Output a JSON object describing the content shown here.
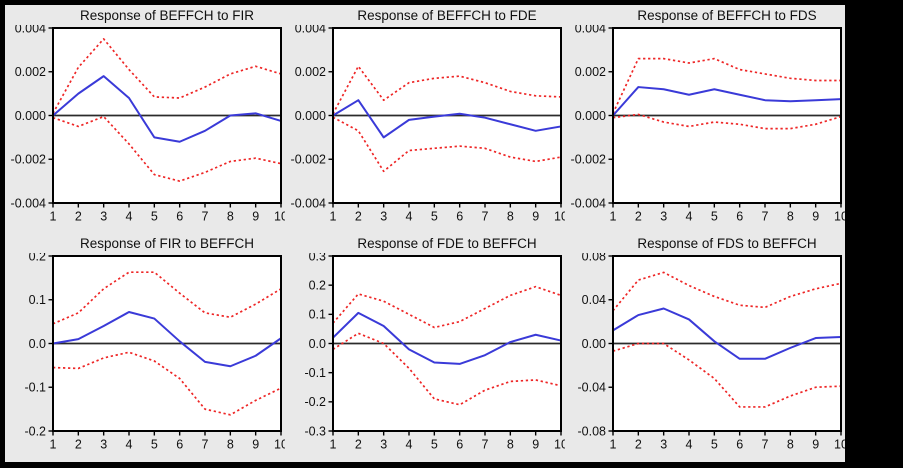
{
  "figure": {
    "background": "#000000",
    "canvas_bg": "#e9e9e9",
    "plot_bg": "#ffffff",
    "axis_color": "#000000",
    "zero_line_color": "#2b2b2b",
    "text_color": "#101010",
    "response_color": "#3a3ad8",
    "band_color": "#ee2626"
  },
  "chart_data": [
    {
      "type": "line",
      "title": "Response of BEFFCH to FIR",
      "x": [
        1,
        2,
        3,
        4,
        5,
        6,
        7,
        8,
        9,
        10
      ],
      "xtick_labels": [
        "1",
        "2",
        "3",
        "4",
        "5",
        "6",
        "7",
        "8",
        "9",
        "10"
      ],
      "ylim": [
        -0.004,
        0.004
      ],
      "yticks": [
        0.004,
        0.002,
        0,
        -0.002,
        -0.004
      ],
      "ytick_labels": [
        "0.004",
        "0.002",
        "0.000",
        "-0.002",
        "-0.004"
      ],
      "grid": false,
      "legend": "none",
      "series": [
        {
          "name": "impulse-response",
          "style": "solid",
          "color": "#3a3ad8",
          "values": [
            0.0,
            0.001,
            0.0018,
            0.0008,
            -0.001,
            -0.0012,
            -0.0007,
            0.0,
            0.0001,
            -0.00025
          ]
        },
        {
          "name": "upper-confidence-band",
          "style": "dashed",
          "color": "#ee2626",
          "values": [
            0.0001,
            0.0022,
            0.0035,
            0.0021,
            0.00085,
            0.0008,
            0.0013,
            0.0019,
            0.00225,
            0.0019
          ]
        },
        {
          "name": "lower-confidence-band",
          "style": "dashed",
          "color": "#ee2626",
          "values": [
            -0.0001,
            -0.0005,
            -5e-05,
            -0.0013,
            -0.0027,
            -0.003,
            -0.0026,
            -0.0021,
            -0.00195,
            -0.0022
          ]
        }
      ]
    },
    {
      "type": "line",
      "title": "Response of BEFFCH to FDE",
      "x": [
        1,
        2,
        3,
        4,
        5,
        6,
        7,
        8,
        9,
        10
      ],
      "xtick_labels": [
        "1",
        "2",
        "3",
        "4",
        "5",
        "6",
        "7",
        "8",
        "9",
        "10"
      ],
      "ylim": [
        -0.004,
        0.004
      ],
      "yticks": [
        0.004,
        0.002,
        0,
        -0.002,
        -0.004
      ],
      "ytick_labels": [
        "0.004",
        "0.002",
        "0.000",
        "-0.002",
        "-0.004"
      ],
      "grid": false,
      "legend": "none",
      "series": [
        {
          "name": "impulse-response",
          "style": "solid",
          "color": "#3a3ad8",
          "values": [
            0.0,
            0.0007,
            -0.001,
            -0.0002,
            -5e-05,
            8e-05,
            -0.0001,
            -0.0004,
            -0.0007,
            -0.0005
          ]
        },
        {
          "name": "upper-confidence-band",
          "style": "dashed",
          "color": "#ee2626",
          "values": [
            8e-05,
            0.00225,
            0.0007,
            0.0015,
            0.0017,
            0.0018,
            0.0015,
            0.0011,
            0.0009,
            0.00085
          ]
        },
        {
          "name": "lower-confidence-band",
          "style": "dashed",
          "color": "#ee2626",
          "values": [
            -8e-05,
            -0.0007,
            -0.00255,
            -0.0016,
            -0.0015,
            -0.0014,
            -0.0015,
            -0.0019,
            -0.0021,
            -0.0019
          ]
        }
      ]
    },
    {
      "type": "line",
      "title": "Response of BEFFCH to FDS",
      "x": [
        1,
        2,
        3,
        4,
        5,
        6,
        7,
        8,
        9,
        10
      ],
      "xtick_labels": [
        "1",
        "2",
        "3",
        "4",
        "5",
        "6",
        "7",
        "8",
        "9",
        "10"
      ],
      "ylim": [
        -0.004,
        0.004
      ],
      "yticks": [
        0.004,
        0.002,
        0,
        -0.002,
        -0.004
      ],
      "ytick_labels": [
        "0.004",
        "0.002",
        "0.000",
        "-0.002",
        "-0.004"
      ],
      "grid": false,
      "legend": "none",
      "series": [
        {
          "name": "impulse-response",
          "style": "solid",
          "color": "#3a3ad8",
          "values": [
            0.0,
            0.0013,
            0.0012,
            0.00095,
            0.0012,
            0.00095,
            0.0007,
            0.00065,
            0.0007,
            0.00075
          ]
        },
        {
          "name": "upper-confidence-band",
          "style": "dashed",
          "color": "#ee2626",
          "values": [
            0.0001,
            0.0026,
            0.0026,
            0.0024,
            0.0026,
            0.0021,
            0.0019,
            0.0017,
            0.0016,
            0.0016
          ]
        },
        {
          "name": "lower-confidence-band",
          "style": "dashed",
          "color": "#ee2626",
          "values": [
            -0.0001,
            5e-05,
            -0.0003,
            -0.0005,
            -0.0003,
            -0.0004,
            -0.0006,
            -0.0006,
            -0.0004,
            -5e-05
          ]
        }
      ]
    },
    {
      "type": "line",
      "title": "Response of FIR to BEFFCH",
      "x": [
        1,
        2,
        3,
        4,
        5,
        6,
        7,
        8,
        9,
        10
      ],
      "xtick_labels": [
        "1",
        "2",
        "3",
        "4",
        "5",
        "6",
        "7",
        "8",
        "9",
        "10"
      ],
      "ylim": [
        -0.2,
        0.2
      ],
      "yticks": [
        0.2,
        0.1,
        0,
        -0.1,
        -0.2
      ],
      "ytick_labels": [
        "0.2",
        "0.1",
        "0.0",
        "-0.1",
        "-0.2"
      ],
      "grid": false,
      "legend": "none",
      "series": [
        {
          "name": "impulse-response",
          "style": "solid",
          "color": "#3a3ad8",
          "values": [
            0.0,
            0.01,
            0.04,
            0.072,
            0.057,
            0.005,
            -0.042,
            -0.052,
            -0.028,
            0.012
          ]
        },
        {
          "name": "upper-confidence-band",
          "style": "dashed",
          "color": "#ee2626",
          "values": [
            0.045,
            0.07,
            0.125,
            0.163,
            0.163,
            0.115,
            0.07,
            0.06,
            0.09,
            0.125
          ]
        },
        {
          "name": "lower-confidence-band",
          "style": "dashed",
          "color": "#ee2626",
          "values": [
            -0.055,
            -0.057,
            -0.033,
            -0.02,
            -0.04,
            -0.08,
            -0.15,
            -0.163,
            -0.13,
            -0.102
          ]
        }
      ]
    },
    {
      "type": "line",
      "title": "Response of FDE to BEFFCH",
      "x": [
        1,
        2,
        3,
        4,
        5,
        6,
        7,
        8,
        9,
        10
      ],
      "xtick_labels": [
        "1",
        "2",
        "3",
        "4",
        "5",
        "6",
        "7",
        "8",
        "9",
        "10"
      ],
      "ylim": [
        -0.3,
        0.3
      ],
      "yticks": [
        0.3,
        0.2,
        0.1,
        0,
        -0.1,
        -0.2,
        -0.3
      ],
      "ytick_labels": [
        "0.3",
        "0.2",
        "0.1",
        "0.0",
        "-0.1",
        "-0.2",
        "-0.3"
      ],
      "grid": false,
      "legend": "none",
      "series": [
        {
          "name": "impulse-response",
          "style": "solid",
          "color": "#3a3ad8",
          "values": [
            0.02,
            0.105,
            0.06,
            -0.02,
            -0.065,
            -0.07,
            -0.04,
            0.005,
            0.03,
            0.01
          ]
        },
        {
          "name": "upper-confidence-band",
          "style": "dashed",
          "color": "#ee2626",
          "values": [
            0.07,
            0.17,
            0.145,
            0.1,
            0.055,
            0.075,
            0.12,
            0.165,
            0.195,
            0.165
          ]
        },
        {
          "name": "lower-confidence-band",
          "style": "dashed",
          "color": "#ee2626",
          "values": [
            -0.02,
            0.035,
            0.0,
            -0.085,
            -0.19,
            -0.21,
            -0.16,
            -0.13,
            -0.125,
            -0.145
          ]
        }
      ]
    },
    {
      "type": "line",
      "title": "Response of FDS to BEFFCH",
      "x": [
        1,
        2,
        3,
        4,
        5,
        6,
        7,
        8,
        9,
        10
      ],
      "xtick_labels": [
        "1",
        "2",
        "3",
        "4",
        "5",
        "6",
        "7",
        "8",
        "9",
        "10"
      ],
      "ylim": [
        -0.08,
        0.08
      ],
      "yticks": [
        0.08,
        0.04,
        0,
        -0.04,
        -0.08
      ],
      "ytick_labels": [
        "0.08",
        "0.04",
        "0.00",
        "-0.04",
        "-0.08"
      ],
      "grid": false,
      "legend": "none",
      "series": [
        {
          "name": "impulse-response",
          "style": "solid",
          "color": "#3a3ad8",
          "values": [
            0.012,
            0.026,
            0.032,
            0.022,
            0.002,
            -0.014,
            -0.014,
            -0.004,
            0.005,
            0.006
          ]
        },
        {
          "name": "upper-confidence-band",
          "style": "dashed",
          "color": "#ee2626",
          "values": [
            0.03,
            0.058,
            0.065,
            0.053,
            0.043,
            0.035,
            0.033,
            0.043,
            0.05,
            0.055
          ]
        },
        {
          "name": "lower-confidence-band",
          "style": "dashed",
          "color": "#ee2626",
          "values": [
            -0.007,
            0.0,
            0.0,
            -0.015,
            -0.032,
            -0.058,
            -0.058,
            -0.048,
            -0.04,
            -0.039
          ]
        }
      ]
    }
  ]
}
